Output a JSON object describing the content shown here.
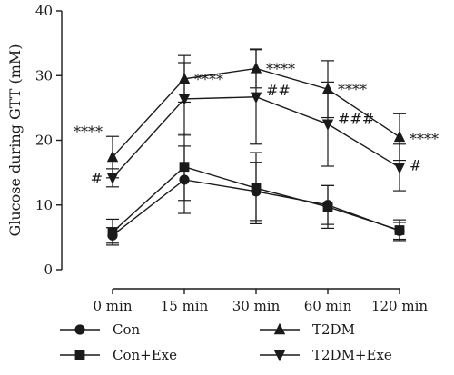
{
  "chart_data": {
    "type": "line",
    "title": "",
    "xlabel": "",
    "ylabel": "Glucose during GTT (mM)",
    "categories": [
      "0 min",
      "15 min",
      "30 min",
      "60 min",
      "120 min"
    ],
    "ylim": [
      0,
      40
    ],
    "yticks": [
      0,
      10,
      20,
      30,
      40
    ],
    "grid": false,
    "legend_position": "bottom",
    "series": [
      {
        "name": "Con",
        "marker": "circle",
        "values": [
          5.3,
          13.9,
          12.1,
          10.0,
          6.0
        ],
        "errors": [
          1.2,
          5.2,
          4.5,
          3.0,
          1.3
        ]
      },
      {
        "name": "T2DM",
        "marker": "triangle-up",
        "values": [
          17.4,
          29.5,
          31.1,
          27.9,
          20.5
        ],
        "errors": [
          3.2,
          3.6,
          3.0,
          4.4,
          3.6
        ]
      },
      {
        "name": "Con+Exe",
        "marker": "square",
        "values": [
          5.8,
          15.9,
          12.6,
          9.7,
          6.1
        ],
        "errors": [
          2.0,
          5.2,
          5.5,
          3.3,
          1.6
        ]
      },
      {
        "name": "T2DM+Exe",
        "marker": "triangle-down",
        "values": [
          14.2,
          26.4,
          26.7,
          22.5,
          15.8
        ],
        "errors": [
          1.4,
          5.6,
          7.3,
          6.5,
          3.6
        ]
      }
    ],
    "annotations": [
      {
        "text": "****",
        "category": "0 min",
        "y": 21.4,
        "side": "left"
      },
      {
        "text": "#",
        "category": "0 min",
        "y": 14.2,
        "side": "left"
      },
      {
        "text": "****",
        "category": "15 min",
        "y": 29.5,
        "side": "right"
      },
      {
        "text": "****",
        "category": "30 min",
        "y": 31.1,
        "side": "right"
      },
      {
        "text": "##",
        "category": "30 min",
        "y": 27.8,
        "side": "right"
      },
      {
        "text": "****",
        "category": "60 min",
        "y": 27.9,
        "side": "right"
      },
      {
        "text": "###",
        "category": "60 min",
        "y": 23.4,
        "side": "right"
      },
      {
        "text": "****",
        "category": "120 min",
        "y": 20.3,
        "side": "right"
      },
      {
        "text": "#",
        "category": "120 min",
        "y": 16.2,
        "side": "right"
      }
    ]
  }
}
